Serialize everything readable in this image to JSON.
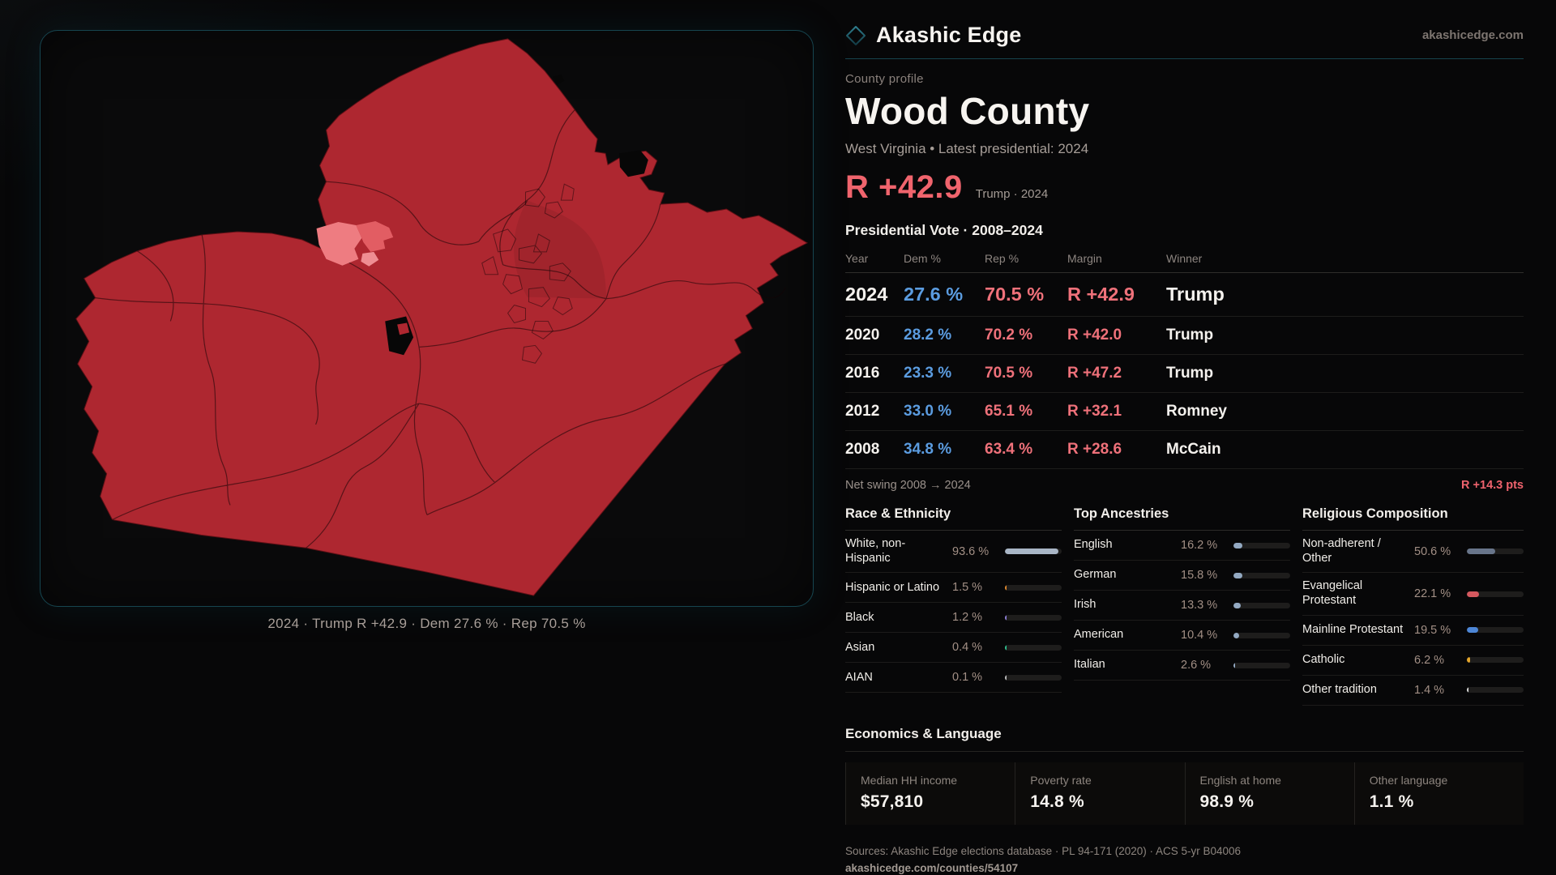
{
  "site": {
    "brand": "Akashic Edge",
    "domain": "akashicedge.com"
  },
  "profile": {
    "kicker": "County profile",
    "title": "Wood County",
    "subtitle": "West Virginia • Latest presidential: 2024",
    "headline_margin": "R +42.9",
    "headline_note": "Trump · 2024"
  },
  "vote_table": {
    "title": "Presidential Vote · 2008–2024",
    "columns": {
      "year": "Year",
      "dem": "Dem %",
      "rep": "Rep %",
      "margin": "Margin",
      "winner": "Winner"
    },
    "rows": [
      {
        "year": "2024",
        "dem": "27.6 %",
        "rep": "70.5 %",
        "margin": "R +42.9",
        "winner": "Trump"
      },
      {
        "year": "2020",
        "dem": "28.2 %",
        "rep": "70.2 %",
        "margin": "R +42.0",
        "winner": "Trump"
      },
      {
        "year": "2016",
        "dem": "23.3 %",
        "rep": "70.5 %",
        "margin": "R +47.2",
        "winner": "Trump"
      },
      {
        "year": "2012",
        "dem": "33.0 %",
        "rep": "65.1 %",
        "margin": "R +32.1",
        "winner": "Romney"
      },
      {
        "year": "2008",
        "dem": "34.8 %",
        "rep": "63.4 %",
        "margin": "R +28.6",
        "winner": "McCain"
      }
    ],
    "net_swing_label": "Net swing 2008 → 2024",
    "net_swing_value": "R +14.3 pts"
  },
  "map": {
    "caption": "2024 · Trump R +42.9 · Dem 27.6 % · Rep 70.5 %",
    "fill_color": "#ae2730",
    "highlight_color": "#ee7c81",
    "no_data_color": "#070707"
  },
  "race": {
    "title": "Race & Ethnicity",
    "rows": [
      {
        "label": "White, non-Hispanic",
        "value": "93.6 %",
        "pct": 93.6,
        "color": "#a9b6c6"
      },
      {
        "label": "Hispanic or Latino",
        "value": "1.5 %",
        "pct": 1.5,
        "color": "#e0892e"
      },
      {
        "label": "Black",
        "value": "1.2 %",
        "pct": 1.2,
        "color": "#8d7fd6"
      },
      {
        "label": "Asian",
        "value": "0.4 %",
        "pct": 0.4,
        "color": "#2fbf8f"
      },
      {
        "label": "AIAN",
        "value": "0.1 %",
        "pct": 0.1,
        "color": "#bdbdbd"
      }
    ]
  },
  "ancestries": {
    "title": "Top Ancestries",
    "rows": [
      {
        "label": "English",
        "value": "16.2 %",
        "pct": 16.2,
        "color": "#93a9c2"
      },
      {
        "label": "German",
        "value": "15.8 %",
        "pct": 15.8,
        "color": "#93a9c2"
      },
      {
        "label": "Irish",
        "value": "13.3 %",
        "pct": 13.3,
        "color": "#93a9c2"
      },
      {
        "label": "American",
        "value": "10.4 %",
        "pct": 10.4,
        "color": "#93a9c2"
      },
      {
        "label": "Italian",
        "value": "2.6 %",
        "pct": 2.6,
        "color": "#93a9c2"
      }
    ]
  },
  "religion": {
    "title": "Religious Composition",
    "rows": [
      {
        "label": "Non-adherent / Other",
        "value": "50.6 %",
        "pct": 50.6,
        "color": "#68758a"
      },
      {
        "label": "Evangelical Protestant",
        "value": "22.1 %",
        "pct": 22.1,
        "color": "#d5595f"
      },
      {
        "label": "Mainline Protestant",
        "value": "19.5 %",
        "pct": 19.5,
        "color": "#4d86d6"
      },
      {
        "label": "Catholic",
        "value": "6.2 %",
        "pct": 6.2,
        "color": "#e3a52b"
      },
      {
        "label": "Other tradition",
        "value": "1.4 %",
        "pct": 1.4,
        "color": "#dcdcdc"
      }
    ]
  },
  "economics": {
    "title": "Economics & Language",
    "stats": [
      {
        "label": "Median HH income",
        "value": "$57,810"
      },
      {
        "label": "Poverty rate",
        "value": "14.8 %"
      },
      {
        "label": "English at home",
        "value": "98.9 %"
      },
      {
        "label": "Other language",
        "value": "1.1 %"
      }
    ]
  },
  "footer": {
    "sources": "Sources: Akashic Edge elections database · PL 94-171 (2020) · ACS 5-yr B04006",
    "permalink": "akashicedge.com/counties/54107"
  }
}
